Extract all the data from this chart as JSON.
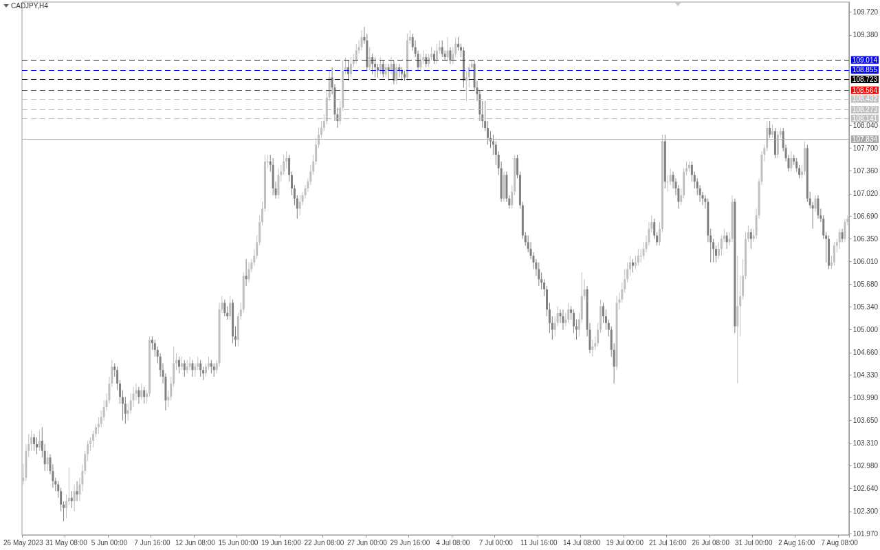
{
  "chart_data": {
    "type": "candlestick",
    "title": "CADJPY,H4",
    "colors": [
      "#c0c0c0",
      "#c0c0c0",
      "#c0c0c0",
      "#c0c0c0",
      "#808080",
      "#808080",
      "#c0c0c0",
      "#808080",
      "#808080",
      "#c0c0c0",
      "#808080",
      "#808080",
      "#808080",
      "#808080",
      "#808080",
      "#808080",
      "#c0c0c0",
      "#c0c0c0",
      "#808080",
      "#c0c0c0",
      "#808080",
      "#c0c0c0",
      "#c0c0c0",
      "#c0c0c0",
      "#c0c0c0",
      "#c0c0c0",
      "#c0c0c0",
      "#c0c0c0",
      "#c0c0c0",
      "#c0c0c0",
      "#c0c0c0",
      "#c0c0c0",
      "#c0c0c0",
      "#c0c0c0",
      "#808080",
      "#808080",
      "#808080",
      "#808080",
      "#808080",
      "#c0c0c0",
      "#c0c0c0",
      "#c0c0c0",
      "#c0c0c0",
      "#808080",
      "#c0c0c0",
      "#808080",
      "#c0c0c0",
      "#c0c0c0",
      "#808080",
      "#808080",
      "#808080",
      "#808080",
      "#808080",
      "#808080",
      "#c0c0c0",
      "#c0c0c0",
      "#c0c0c0",
      "#c0c0c0",
      "#808080",
      "#c0c0c0",
      "#808080",
      "#c0c0c0",
      "#c0c0c0",
      "#808080",
      "#c0c0c0",
      "#c0c0c0",
      "#808080",
      "#808080",
      "#c0c0c0",
      "#c0c0c0",
      "#808080",
      "#808080",
      "#c0c0c0",
      "#c0c0c0",
      "#c0c0c0",
      "#808080",
      "#808080",
      "#c0c0c0",
      "#808080",
      "#808080",
      "#c0c0c0",
      "#c0c0c0",
      "#c0c0c0",
      "#808080",
      "#c0c0c0",
      "#c0c0c0",
      "#c0c0c0",
      "#c0c0c0",
      "#c0c0c0",
      "#c0c0c0",
      "#c0c0c0",
      "#c0c0c0",
      "#808080",
      "#808080",
      "#808080",
      "#c0c0c0",
      "#c0c0c0",
      "#c0c0c0",
      "#c0c0c0",
      "#808080",
      "#808080",
      "#808080",
      "#808080",
      "#c0c0c0",
      "#c0c0c0",
      "#c0c0c0",
      "#c0c0c0",
      "#c0c0c0",
      "#c0c0c0",
      "#c0c0c0",
      "#c0c0c0",
      "#c0c0c0",
      "#c0c0c0",
      "#c0c0c0",
      "#c0c0c0",
      "#808080",
      "#808080",
      "#808080",
      "#c0c0c0",
      "#c0c0c0",
      "#c0c0c0",
      "#808080",
      "#c0c0c0",
      "#c0c0c0",
      "#c0c0c0",
      "#c0c0c0",
      "#c0c0c0",
      "#808080",
      "#808080",
      "#c0c0c0",
      "#808080",
      "#808080",
      "#808080",
      "#c0c0c0",
      "#808080",
      "#c0c0c0",
      "#808080",
      "#c0c0c0",
      "#808080",
      "#c0c0c0",
      "#808080",
      "#808080",
      "#808080",
      "#c0c0c0",
      "#c0c0c0",
      "#808080",
      "#808080",
      "#808080",
      "#c0c0c0",
      "#c0c0c0",
      "#808080",
      "#c0c0c0",
      "#c0c0c0",
      "#808080",
      "#c0c0c0",
      "#c0c0c0",
      "#808080",
      "#808080",
      "#c0c0c0",
      "#808080",
      "#c0c0c0",
      "#c0c0c0",
      "#808080",
      "#808080",
      "#808080",
      "#c0c0c0",
      "#c0c0c0",
      "#c0c0c0",
      "#808080",
      "#808080",
      "#808080",
      "#808080",
      "#808080",
      "#808080",
      "#808080",
      "#808080",
      "#808080",
      "#808080",
      "#808080",
      "#c0c0c0",
      "#808080",
      "#808080",
      "#c0c0c0",
      "#c0c0c0",
      "#808080",
      "#808080",
      "#808080",
      "#808080",
      "#808080",
      "#808080",
      "#808080",
      "#808080",
      "#808080",
      "#808080",
      "#808080",
      "#808080",
      "#808080",
      "#808080",
      "#c0c0c0",
      "#c0c0c0",
      "#808080",
      "#808080",
      "#c0c0c0",
      "#c0c0c0",
      "#808080",
      "#808080",
      "#808080",
      "#c0c0c0",
      "#c0c0c0",
      "#c0c0c0",
      "#808080",
      "#808080",
      "#c0c0c0",
      "#c0c0c0",
      "#c0c0c0",
      "#c0c0c0",
      "#808080",
      "#808080",
      "#808080",
      "#808080",
      "#808080",
      "#c0c0c0",
      "#c0c0c0",
      "#c0c0c0",
      "#c0c0c0",
      "#c0c0c0",
      "#c0c0c0",
      "#808080",
      "#c0c0c0",
      "#c0c0c0",
      "#c0c0c0",
      "#c0c0c0",
      "#c0c0c0",
      "#c0c0c0",
      "#c0c0c0",
      "#808080",
      "#808080",
      "#c0c0c0",
      "#c0c0c0",
      "#808080",
      "#c0c0c0",
      "#c0c0c0",
      "#808080",
      "#808080",
      "#808080",
      "#c0c0c0",
      "#c0c0c0",
      "#c0c0c0",
      "#c0c0c0",
      "#808080",
      "#808080",
      "#808080",
      "#808080",
      "#808080",
      "#808080",
      "#808080",
      "#808080",
      "#808080",
      "#808080",
      "#c0c0c0",
      "#c0c0c0",
      "#c0c0c0",
      "#808080",
      "#c0c0c0",
      "#c0c0c0",
      "#808080",
      "#c0c0c0",
      "#c0c0c0",
      "#c0c0c0",
      "#c0c0c0",
      "#c0c0c0",
      "#808080",
      "#c0c0c0",
      "#c0c0c0",
      "#c0c0c0",
      "#c0c0c0",
      "#c0c0c0",
      "#c0c0c0",
      "#808080",
      "#c0c0c0",
      "#808080",
      "#c0c0c0",
      "#c0c0c0",
      "#808080",
      "#808080",
      "#808080",
      "#c0c0c0",
      "#808080",
      "#808080",
      "#808080",
      "#c0c0c0",
      "#c0c0c0",
      "#808080",
      "#808080",
      "#808080",
      "#c0c0c0",
      "#808080",
      "#808080",
      "#808080",
      "#808080",
      "#808080",
      "#c0c0c0",
      "#c0c0c0",
      "#c0c0c0",
      "#c0c0c0",
      "#808080",
      "#c0c0c0",
      "#c0c0c0"
    ],
    "categories": [
      "26 May 2023",
      null,
      null,
      null,
      null,
      null,
      null,
      null,
      null,
      null,
      null,
      null,
      null,
      null,
      null,
      null,
      "31 May 08:00",
      null,
      null,
      null,
      null,
      null,
      null,
      null,
      null,
      null,
      null,
      null,
      null,
      null,
      null,
      null,
      "5 Jun 00:00",
      null,
      null,
      null,
      null,
      null,
      null,
      null,
      null,
      null,
      null,
      null,
      null,
      null,
      null,
      null,
      "7 Jun 16:00",
      null,
      null,
      null,
      null,
      null,
      null,
      null,
      null,
      null,
      null,
      null,
      null,
      null,
      null,
      null,
      "12 Jun 08:00",
      null,
      null,
      null,
      null,
      null,
      null,
      null,
      null,
      null,
      null,
      null,
      null,
      null,
      null,
      null,
      "15 Jun 00:00",
      null,
      null,
      null,
      null,
      null,
      null,
      null,
      null,
      null,
      null,
      null,
      null,
      null,
      null,
      null,
      "19 Jun 16:00",
      null,
      null,
      null,
      null,
      null,
      null,
      null,
      null,
      null,
      null,
      null,
      null,
      null,
      null,
      null,
      "22 Jun 08:00",
      null,
      null,
      null,
      null,
      null,
      null,
      null,
      null,
      null,
      null,
      null,
      null,
      null,
      null,
      null,
      "27 Jun 00:00",
      null,
      null,
      null,
      null,
      null,
      null,
      null,
      null,
      null,
      null,
      null,
      null,
      null,
      null,
      null,
      "29 Jun 16:00",
      null,
      null,
      null,
      null,
      null,
      null,
      null,
      null,
      null,
      null,
      null,
      null,
      null,
      null,
      null,
      "4 Jul 08:00",
      null,
      null,
      null,
      null,
      null,
      null,
      null,
      null,
      null,
      null,
      null,
      null,
      null,
      null,
      null,
      "7 Jul 00:00",
      null,
      null,
      null,
      null,
      null,
      null,
      null,
      null,
      null,
      null,
      null,
      null,
      null,
      null,
      null,
      "11 Jul 16:00",
      null,
      null,
      null,
      null,
      null,
      null,
      null,
      null,
      null,
      null,
      null,
      null,
      null,
      null,
      null,
      "14 Jul 08:00",
      null,
      null,
      null,
      null,
      null,
      null,
      null,
      null,
      null,
      null,
      null,
      null,
      null,
      null,
      null,
      "19 Jul 00:00",
      null,
      null,
      null,
      null,
      null,
      null,
      null,
      null,
      null,
      null,
      null,
      null,
      null,
      null,
      null,
      "21 Jul 16:00",
      null,
      null,
      null,
      null,
      null,
      null,
      null,
      null,
      null,
      null,
      null,
      null,
      null,
      null,
      null,
      "26 Jul 08:00",
      null,
      null,
      null,
      null,
      null,
      null,
      null,
      null,
      null,
      null,
      null,
      null,
      null,
      null,
      null,
      "31 Jul 00:00",
      null,
      null,
      null,
      null,
      null,
      null,
      null,
      null,
      null,
      null,
      null,
      null,
      null,
      null,
      null,
      "2 Aug 16:00",
      null,
      null,
      null,
      null,
      null,
      null,
      null,
      null,
      null,
      null,
      null,
      null,
      null,
      null,
      null,
      "7 Aug 08:00",
      null,
      null,
      null
    ],
    "ohlc": [
      [
        102.75,
        103.0,
        102.7,
        102.8
      ],
      [
        102.8,
        103.3,
        102.75,
        103.2
      ],
      [
        103.2,
        103.45,
        103.1,
        103.3
      ],
      [
        103.3,
        103.5,
        103.2,
        103.4
      ],
      [
        103.4,
        103.45,
        103.2,
        103.3
      ],
      [
        103.3,
        103.4,
        103.15,
        103.25
      ],
      [
        103.25,
        103.5,
        103.2,
        103.35
      ],
      [
        103.35,
        103.55,
        103.1,
        103.2
      ],
      [
        103.2,
        103.3,
        102.9,
        103.0
      ],
      [
        103.0,
        103.2,
        102.9,
        103.1
      ],
      [
        103.1,
        103.15,
        102.85,
        102.9
      ],
      [
        102.9,
        103.0,
        102.65,
        102.75
      ],
      [
        102.75,
        102.8,
        102.6,
        102.7
      ],
      [
        102.7,
        102.75,
        102.5,
        102.6
      ],
      [
        102.6,
        102.65,
        102.3,
        102.4
      ],
      [
        102.4,
        102.45,
        102.15,
        102.35
      ],
      [
        102.35,
        102.55,
        102.2,
        102.45
      ],
      [
        102.45,
        102.95,
        102.4,
        102.5
      ],
      [
        102.5,
        102.6,
        102.35,
        102.45
      ],
      [
        102.45,
        102.7,
        102.3,
        102.6
      ],
      [
        102.6,
        102.75,
        102.45,
        102.55
      ],
      [
        102.55,
        102.8,
        102.45,
        102.7
      ],
      [
        102.7,
        103.0,
        102.6,
        102.9
      ],
      [
        102.9,
        103.2,
        102.85,
        103.15
      ],
      [
        103.15,
        103.35,
        103.05,
        103.3
      ],
      [
        103.3,
        103.4,
        103.2,
        103.35
      ],
      [
        103.35,
        103.5,
        103.25,
        103.45
      ],
      [
        103.45,
        103.6,
        103.4,
        103.55
      ],
      [
        103.55,
        103.7,
        103.45,
        103.6
      ],
      [
        103.6,
        103.8,
        103.55,
        103.7
      ],
      [
        103.7,
        103.95,
        103.65,
        103.85
      ],
      [
        103.85,
        104.05,
        103.8,
        103.95
      ],
      [
        103.95,
        104.3,
        103.9,
        104.2
      ],
      [
        104.2,
        104.55,
        104.15,
        104.45
      ],
      [
        104.45,
        104.5,
        104.3,
        104.4
      ],
      [
        104.4,
        104.45,
        104.1,
        104.2
      ],
      [
        104.2,
        104.25,
        103.9,
        104.0
      ],
      [
        104.0,
        104.1,
        103.65,
        103.9
      ],
      [
        103.9,
        104.0,
        103.6,
        103.75
      ],
      [
        103.75,
        103.9,
        103.65,
        103.8
      ],
      [
        103.8,
        104.05,
        103.75,
        103.95
      ],
      [
        103.95,
        104.15,
        103.85,
        104.05
      ],
      [
        104.05,
        104.2,
        103.95,
        104.1
      ],
      [
        104.1,
        104.15,
        103.9,
        104.0
      ],
      [
        104.0,
        104.2,
        103.95,
        104.1
      ],
      [
        104.1,
        104.15,
        103.9,
        104.0
      ],
      [
        104.0,
        104.1,
        103.9,
        104.05
      ],
      [
        104.05,
        104.9,
        104.0,
        104.85
      ],
      [
        104.85,
        104.9,
        104.7,
        104.8
      ],
      [
        104.8,
        104.85,
        104.6,
        104.7
      ],
      [
        104.7,
        104.75,
        104.5,
        104.6
      ],
      [
        104.6,
        104.65,
        104.3,
        104.4
      ],
      [
        104.4,
        104.5,
        104.2,
        104.3
      ],
      [
        104.3,
        104.35,
        103.8,
        103.95
      ],
      [
        103.95,
        104.1,
        103.85,
        104.0
      ],
      [
        104.0,
        104.3,
        103.95,
        104.2
      ],
      [
        104.2,
        104.75,
        104.15,
        104.5
      ],
      [
        104.5,
        104.65,
        104.4,
        104.55
      ],
      [
        104.55,
        104.6,
        104.35,
        104.45
      ],
      [
        104.45,
        104.6,
        104.4,
        104.5
      ],
      [
        104.5,
        104.55,
        104.3,
        104.4
      ],
      [
        104.4,
        104.55,
        104.35,
        104.45
      ],
      [
        104.45,
        104.6,
        104.4,
        104.5
      ],
      [
        104.5,
        104.55,
        104.3,
        104.4
      ],
      [
        104.4,
        104.5,
        104.3,
        104.45
      ],
      [
        104.45,
        104.6,
        104.4,
        104.5
      ],
      [
        104.5,
        104.55,
        104.3,
        104.4
      ],
      [
        104.4,
        104.45,
        104.25,
        104.35
      ],
      [
        104.35,
        104.5,
        104.3,
        104.45
      ],
      [
        104.45,
        104.6,
        104.4,
        104.5
      ],
      [
        104.5,
        104.55,
        104.35,
        104.45
      ],
      [
        104.45,
        104.5,
        104.3,
        104.4
      ],
      [
        104.4,
        104.55,
        104.35,
        104.5
      ],
      [
        104.5,
        105.4,
        104.45,
        105.3
      ],
      [
        105.3,
        105.5,
        105.25,
        105.4
      ],
      [
        105.4,
        105.45,
        105.2,
        105.25
      ],
      [
        105.25,
        105.35,
        105.15,
        105.2
      ],
      [
        105.2,
        105.5,
        105.15,
        105.4
      ],
      [
        105.4,
        105.45,
        104.8,
        104.9
      ],
      [
        104.9,
        105.05,
        104.75,
        104.85
      ],
      [
        104.85,
        105.25,
        104.75,
        105.2
      ],
      [
        105.2,
        105.4,
        105.15,
        105.3
      ],
      [
        105.3,
        105.85,
        105.25,
        105.8
      ],
      [
        105.8,
        106.05,
        105.65,
        105.75
      ],
      [
        105.75,
        106.0,
        105.7,
        105.9
      ],
      [
        105.9,
        106.05,
        105.85,
        106.0
      ],
      [
        106.0,
        106.2,
        105.95,
        106.1
      ],
      [
        106.1,
        106.4,
        106.05,
        106.3
      ],
      [
        106.3,
        106.7,
        106.25,
        106.6
      ],
      [
        106.6,
        106.9,
        106.55,
        106.8
      ],
      [
        106.8,
        107.6,
        106.75,
        107.5
      ],
      [
        107.5,
        107.6,
        107.4,
        107.5
      ],
      [
        107.5,
        107.6,
        107.35,
        107.45
      ],
      [
        107.45,
        107.55,
        107.0,
        107.1
      ],
      [
        107.1,
        107.2,
        106.95,
        107.0
      ],
      [
        107.0,
        107.4,
        106.95,
        107.3
      ],
      [
        107.3,
        107.45,
        107.2,
        107.35
      ],
      [
        107.35,
        107.6,
        107.3,
        107.5
      ],
      [
        107.5,
        107.65,
        107.4,
        107.55
      ],
      [
        107.55,
        107.6,
        107.2,
        107.3
      ],
      [
        107.3,
        107.35,
        107.0,
        107.1
      ],
      [
        107.1,
        107.15,
        106.85,
        106.95
      ],
      [
        106.95,
        107.0,
        106.65,
        106.8
      ],
      [
        106.8,
        107.0,
        106.7,
        106.9
      ],
      [
        106.9,
        107.05,
        106.85,
        107.0
      ],
      [
        107.0,
        107.15,
        106.95,
        107.1
      ],
      [
        107.1,
        107.25,
        107.05,
        107.2
      ],
      [
        107.2,
        107.45,
        107.15,
        107.35
      ],
      [
        107.35,
        107.6,
        107.3,
        107.5
      ],
      [
        107.5,
        107.85,
        107.45,
        107.75
      ],
      [
        107.75,
        108.0,
        107.7,
        107.9
      ],
      [
        107.9,
        108.1,
        107.85,
        108.0
      ],
      [
        108.0,
        108.2,
        107.95,
        108.1
      ],
      [
        108.1,
        108.55,
        108.05,
        108.45
      ],
      [
        108.45,
        108.85,
        108.4,
        108.75
      ],
      [
        108.75,
        108.9,
        108.5,
        108.6
      ],
      [
        108.6,
        108.65,
        108.1,
        108.2
      ],
      [
        108.2,
        108.3,
        108.0,
        108.1
      ],
      [
        108.1,
        108.4,
        108.05,
        108.3
      ],
      [
        108.3,
        109.0,
        108.25,
        108.85
      ],
      [
        108.85,
        109.05,
        108.8,
        108.9
      ],
      [
        108.9,
        109.0,
        108.7,
        108.8
      ],
      [
        108.8,
        109.05,
        108.75,
        108.95
      ],
      [
        108.95,
        109.1,
        108.9,
        109.0
      ],
      [
        109.0,
        109.25,
        108.95,
        109.15
      ],
      [
        109.15,
        109.3,
        109.1,
        109.2
      ],
      [
        109.2,
        109.45,
        109.15,
        109.35
      ],
      [
        109.35,
        109.5,
        109.25,
        109.3
      ],
      [
        109.3,
        109.4,
        108.85,
        108.9
      ],
      [
        108.9,
        109.2,
        108.85,
        109.05
      ],
      [
        109.05,
        109.1,
        108.8,
        108.95
      ],
      [
        108.95,
        109.05,
        108.75,
        108.9
      ],
      [
        108.9,
        108.95,
        108.75,
        108.85
      ],
      [
        108.85,
        109.05,
        108.8,
        108.95
      ],
      [
        108.95,
        109.0,
        108.75,
        108.8
      ],
      [
        108.8,
        108.95,
        108.75,
        108.9
      ],
      [
        108.9,
        108.95,
        108.7,
        108.85
      ],
      [
        108.85,
        109.05,
        108.8,
        108.95
      ],
      [
        108.95,
        109.0,
        108.65,
        108.7
      ],
      [
        108.7,
        108.95,
        108.65,
        108.9
      ],
      [
        108.9,
        108.95,
        108.75,
        108.85
      ],
      [
        108.85,
        108.9,
        108.7,
        108.8
      ],
      [
        108.8,
        108.85,
        108.7,
        108.75
      ],
      [
        108.75,
        109.4,
        108.7,
        109.3
      ],
      [
        109.3,
        109.45,
        109.25,
        109.35
      ],
      [
        109.35,
        109.4,
        109.15,
        109.2
      ],
      [
        109.2,
        109.3,
        109.05,
        109.1
      ],
      [
        109.1,
        109.15,
        108.85,
        108.9
      ],
      [
        108.9,
        109.1,
        108.85,
        109.0
      ],
      [
        109.0,
        109.15,
        108.95,
        109.05
      ],
      [
        109.05,
        109.1,
        108.9,
        108.95
      ],
      [
        108.95,
        109.1,
        108.9,
        109.05
      ],
      [
        109.05,
        109.2,
        109.0,
        109.1
      ],
      [
        109.1,
        109.15,
        108.95,
        109.0
      ],
      [
        109.0,
        109.25,
        108.95,
        109.15
      ],
      [
        109.15,
        109.3,
        109.1,
        109.2
      ],
      [
        109.2,
        109.3,
        109.05,
        109.1
      ],
      [
        109.1,
        109.15,
        109.0,
        109.05
      ],
      [
        109.05,
        109.35,
        109.0,
        109.15
      ],
      [
        109.15,
        109.2,
        108.95,
        109.0
      ],
      [
        109.0,
        109.2,
        108.95,
        109.1
      ],
      [
        109.1,
        109.35,
        109.05,
        109.25
      ],
      [
        109.25,
        109.35,
        109.15,
        109.2
      ],
      [
        109.2,
        109.25,
        109.05,
        109.15
      ],
      [
        109.15,
        109.2,
        108.6,
        108.7
      ],
      [
        108.7,
        108.85,
        108.4,
        108.75
      ],
      [
        108.75,
        108.95,
        108.6,
        108.9
      ],
      [
        108.9,
        109.0,
        108.85,
        108.95
      ],
      [
        108.95,
        109.0,
        108.55,
        108.6
      ],
      [
        108.6,
        108.7,
        108.4,
        108.5
      ],
      [
        108.5,
        108.55,
        108.1,
        108.2
      ],
      [
        108.2,
        108.4,
        108.0,
        108.1
      ],
      [
        108.1,
        108.4,
        107.95,
        108.0
      ],
      [
        108.0,
        108.1,
        107.75,
        107.85
      ],
      [
        107.85,
        107.95,
        107.7,
        107.8
      ],
      [
        107.8,
        107.9,
        107.6,
        107.75
      ],
      [
        107.75,
        107.8,
        107.45,
        107.6
      ],
      [
        107.6,
        107.65,
        107.3,
        107.4
      ],
      [
        107.4,
        107.5,
        106.9,
        106.95
      ],
      [
        106.95,
        107.35,
        106.9,
        107.3
      ],
      [
        107.3,
        107.35,
        106.9,
        106.95
      ],
      [
        106.95,
        107.0,
        106.8,
        106.85
      ],
      [
        106.85,
        107.15,
        106.8,
        107.05
      ],
      [
        107.05,
        107.6,
        107.0,
        107.55
      ],
      [
        107.55,
        107.6,
        107.25,
        107.3
      ],
      [
        107.3,
        107.35,
        106.8,
        106.85
      ],
      [
        106.85,
        106.9,
        106.35,
        106.4
      ],
      [
        106.4,
        106.45,
        106.25,
        106.3
      ],
      [
        106.3,
        106.4,
        106.15,
        106.2
      ],
      [
        106.2,
        106.3,
        106.05,
        106.1
      ],
      [
        106.1,
        106.15,
        105.9,
        106.0
      ],
      [
        106.0,
        106.05,
        105.8,
        105.9
      ],
      [
        105.9,
        106.0,
        105.65,
        105.75
      ],
      [
        105.75,
        105.85,
        105.6,
        105.7
      ],
      [
        105.7,
        105.75,
        105.5,
        105.6
      ],
      [
        105.6,
        105.65,
        105.2,
        105.3
      ],
      [
        105.3,
        105.4,
        104.95,
        105.1
      ],
      [
        105.1,
        105.2,
        104.85,
        105.0
      ],
      [
        105.0,
        105.2,
        104.9,
        105.1
      ],
      [
        105.1,
        105.35,
        105.05,
        105.25
      ],
      [
        105.25,
        105.3,
        105.1,
        105.2
      ],
      [
        105.2,
        105.3,
        105.0,
        105.1
      ],
      [
        105.1,
        105.25,
        105.05,
        105.15
      ],
      [
        105.15,
        105.4,
        105.1,
        105.3
      ],
      [
        105.3,
        105.35,
        105.15,
        105.25
      ],
      [
        105.25,
        105.3,
        104.95,
        105.05
      ],
      [
        105.05,
        105.15,
        104.85,
        105.0
      ],
      [
        105.0,
        105.25,
        104.9,
        105.15
      ],
      [
        105.15,
        105.85,
        105.1,
        105.5
      ],
      [
        105.5,
        105.75,
        105.45,
        105.6
      ],
      [
        105.6,
        105.65,
        104.9,
        105.0
      ],
      [
        105.0,
        105.1,
        104.65,
        104.7
      ],
      [
        104.7,
        104.85,
        104.6,
        104.75
      ],
      [
        104.75,
        104.9,
        104.7,
        104.8
      ],
      [
        104.8,
        105.1,
        104.75,
        105.0
      ],
      [
        105.0,
        105.45,
        104.95,
        105.35
      ],
      [
        105.35,
        105.4,
        105.1,
        105.2
      ],
      [
        105.2,
        105.3,
        105.0,
        105.1
      ],
      [
        105.1,
        105.15,
        104.9,
        105.0
      ],
      [
        105.0,
        105.05,
        104.6,
        104.7
      ],
      [
        104.7,
        104.8,
        104.2,
        104.45
      ],
      [
        104.45,
        105.5,
        104.4,
        105.4
      ],
      [
        105.4,
        105.55,
        105.3,
        105.45
      ],
      [
        105.45,
        105.7,
        105.4,
        105.6
      ],
      [
        105.6,
        105.9,
        105.55,
        105.75
      ],
      [
        105.75,
        106.0,
        105.7,
        105.9
      ],
      [
        105.9,
        106.1,
        105.8,
        106.0
      ],
      [
        106.0,
        106.05,
        105.85,
        105.95
      ],
      [
        105.95,
        106.1,
        105.9,
        106.0
      ],
      [
        106.0,
        106.2,
        105.95,
        106.1
      ],
      [
        106.1,
        106.2,
        106.0,
        106.1
      ],
      [
        106.1,
        106.3,
        106.05,
        106.2
      ],
      [
        106.2,
        106.4,
        106.15,
        106.3
      ],
      [
        106.3,
        106.6,
        106.25,
        106.5
      ],
      [
        106.5,
        106.7,
        106.45,
        106.6
      ],
      [
        106.6,
        106.65,
        106.35,
        106.4
      ],
      [
        106.4,
        106.45,
        106.25,
        106.3
      ],
      [
        106.3,
        106.6,
        106.25,
        106.5
      ],
      [
        106.5,
        107.9,
        106.45,
        107.8
      ],
      [
        107.8,
        107.9,
        107.1,
        107.2
      ],
      [
        107.2,
        107.3,
        107.05,
        107.2
      ],
      [
        107.2,
        107.4,
        107.15,
        107.3
      ],
      [
        107.3,
        107.35,
        107.1,
        107.2
      ],
      [
        107.2,
        107.25,
        107.0,
        107.1
      ],
      [
        107.1,
        107.15,
        106.8,
        106.9
      ],
      [
        106.9,
        107.1,
        106.85,
        107.0
      ],
      [
        107.0,
        107.4,
        106.95,
        107.35
      ],
      [
        107.35,
        107.5,
        107.3,
        107.4
      ],
      [
        107.4,
        107.5,
        107.35,
        107.45
      ],
      [
        107.45,
        107.5,
        107.2,
        107.3
      ],
      [
        107.3,
        107.35,
        107.1,
        107.2
      ],
      [
        107.2,
        107.25,
        107.0,
        107.1
      ],
      [
        107.1,
        107.15,
        106.9,
        107.0
      ],
      [
        107.0,
        107.05,
        106.85,
        106.95
      ],
      [
        106.95,
        107.0,
        106.8,
        106.9
      ],
      [
        106.9,
        106.95,
        106.3,
        106.4
      ],
      [
        106.4,
        106.5,
        106.0,
        106.3
      ],
      [
        106.3,
        106.35,
        106.0,
        106.2
      ],
      [
        106.2,
        106.25,
        106.0,
        106.1
      ],
      [
        106.1,
        106.3,
        106.05,
        106.2
      ],
      [
        106.2,
        106.4,
        106.1,
        106.35
      ],
      [
        106.35,
        106.5,
        106.3,
        106.4
      ],
      [
        106.4,
        106.45,
        106.2,
        106.3
      ],
      [
        106.3,
        106.45,
        106.25,
        106.35
      ],
      [
        106.35,
        107.0,
        106.3,
        106.9
      ],
      [
        106.9,
        106.95,
        104.95,
        105.05
      ],
      [
        105.05,
        106.1,
        104.2,
        105.35
      ],
      [
        105.35,
        105.8,
        104.9,
        105.5
      ],
      [
        105.5,
        106.05,
        105.45,
        105.8
      ],
      [
        105.8,
        106.45,
        105.75,
        106.35
      ],
      [
        106.35,
        106.55,
        106.3,
        106.45
      ],
      [
        106.45,
        106.5,
        106.2,
        106.35
      ],
      [
        106.35,
        106.5,
        106.3,
        106.4
      ],
      [
        106.4,
        106.8,
        106.35,
        106.7
      ],
      [
        106.7,
        107.25,
        106.65,
        107.2
      ],
      [
        107.2,
        107.65,
        107.15,
        107.6
      ],
      [
        107.6,
        107.75,
        107.5,
        107.7
      ],
      [
        107.7,
        108.1,
        107.65,
        108.0
      ],
      [
        108.0,
        108.1,
        107.85,
        107.9
      ],
      [
        107.9,
        108.05,
        107.85,
        107.95
      ],
      [
        107.95,
        108.0,
        107.55,
        107.6
      ],
      [
        107.6,
        107.95,
        107.55,
        107.9
      ],
      [
        107.9,
        108.0,
        107.85,
        107.95
      ],
      [
        107.95,
        108.0,
        107.65,
        107.7
      ],
      [
        107.7,
        107.75,
        107.5,
        107.55
      ],
      [
        107.55,
        107.6,
        107.35,
        107.4
      ],
      [
        107.4,
        107.65,
        107.35,
        107.55
      ],
      [
        107.55,
        107.6,
        107.45,
        107.5
      ],
      [
        107.5,
        107.55,
        107.35,
        107.4
      ],
      [
        107.4,
        107.45,
        107.25,
        107.3
      ],
      [
        107.3,
        107.45,
        107.25,
        107.35
      ],
      [
        107.35,
        107.8,
        107.3,
        107.7
      ],
      [
        107.7,
        107.75,
        106.9,
        106.95
      ],
      [
        106.95,
        107.05,
        106.8,
        106.85
      ],
      [
        106.85,
        106.9,
        106.5,
        106.8
      ],
      [
        106.8,
        107.0,
        106.75,
        106.95
      ],
      [
        106.95,
        107.0,
        106.65,
        106.7
      ],
      [
        106.7,
        106.8,
        106.6,
        106.65
      ],
      [
        106.65,
        106.7,
        106.35,
        106.4
      ],
      [
        106.4,
        106.45,
        106.0,
        106.35
      ],
      [
        106.35,
        106.4,
        105.9,
        105.95
      ],
      [
        105.95,
        106.1,
        105.9,
        106.0
      ],
      [
        106.0,
        106.3,
        105.95,
        106.25
      ],
      [
        106.25,
        106.35,
        106.15,
        106.3
      ],
      [
        106.3,
        106.5,
        106.2,
        106.45
      ],
      [
        106.45,
        106.5,
        106.3,
        106.35
      ],
      [
        106.35,
        106.65,
        106.3,
        106.6
      ],
      [
        106.6,
        106.7,
        106.55,
        106.65
      ]
    ],
    "ylim": [
      101.95,
      109.87
    ],
    "yticks": [
      {
        "value": 101.97,
        "label": "101.970"
      },
      {
        "value": 102.3,
        "label": "102.300"
      },
      {
        "value": 102.64,
        "label": "102.640"
      },
      {
        "value": 102.98,
        "label": "102.980"
      },
      {
        "value": 103.31,
        "label": "103.310"
      },
      {
        "value": 103.65,
        "label": "103.650"
      },
      {
        "value": 103.99,
        "label": "103.990"
      },
      {
        "value": 104.33,
        "label": "104.330"
      },
      {
        "value": 104.66,
        "label": "104.660"
      },
      {
        "value": 105.0,
        "label": "105.000"
      },
      {
        "value": 105.34,
        "label": "105.340"
      },
      {
        "value": 105.68,
        "label": "105.680"
      },
      {
        "value": 106.01,
        "label": "106.010"
      },
      {
        "value": 106.35,
        "label": "106.350"
      },
      {
        "value": 106.69,
        "label": "106.690"
      },
      {
        "value": 107.02,
        "label": "107.020"
      },
      {
        "value": 107.36,
        "label": "107.360"
      },
      {
        "value": 107.7,
        "label": "107.700"
      },
      {
        "value": 108.04,
        "label": "108.040"
      },
      {
        "value": 109.38,
        "label": "109.380"
      },
      {
        "value": 109.72,
        "label": "109.720"
      }
    ],
    "ref_lines": [
      {
        "axis": "y",
        "value": 109.014,
        "label": "109.014",
        "color": "#0000ff",
        "line_style": "dashed"
      },
      {
        "axis": "y",
        "value": 108.855,
        "label": "108.855",
        "color": "#0000ff",
        "line_style": "dashed"
      },
      {
        "axis": "y",
        "value": 108.723,
        "label": "108.723",
        "color": "#000000",
        "line_style": "dashed"
      },
      {
        "axis": "y",
        "value": 108.564,
        "label": "108.564",
        "color": "#ff0000",
        "line_style": "dashed"
      },
      {
        "axis": "y",
        "value": 108.432,
        "label": "108.432",
        "color": "#c0c0c0",
        "line_style": "dashed"
      },
      {
        "axis": "y",
        "value": 108.273,
        "label": "108.273",
        "color": "#c0c0c0",
        "line_style": "dashed"
      },
      {
        "axis": "y",
        "value": 108.141,
        "label": "108.141",
        "color": "#c0c0c0",
        "line_style": "dashed"
      },
      {
        "axis": "y",
        "value": 107.834,
        "label": "107.834",
        "color": "#a8a8a8",
        "line_style": "solid"
      }
    ],
    "grid": false
  }
}
